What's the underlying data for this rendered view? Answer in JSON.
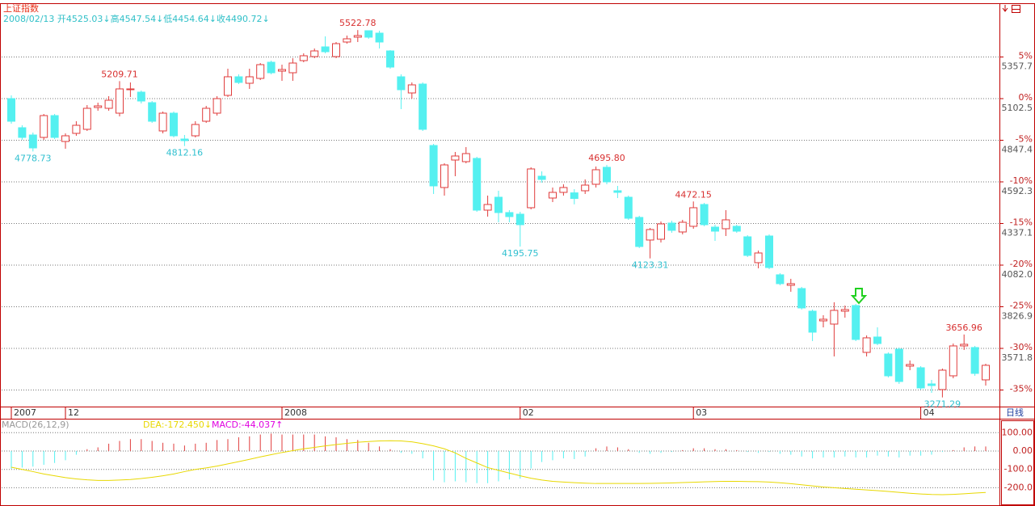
{
  "chart_data": [
    {
      "type": "candlestick",
      "title": "上证指数",
      "subtitle": "2008/02/13 开4525.03↓高4547.54↓低4454.64↓收4490.72↓",
      "period": "日线",
      "categories": [
        "2007",
        null,
        null,
        null,
        null,
        "12",
        null,
        null,
        null,
        null,
        null,
        null,
        null,
        null,
        null,
        null,
        null,
        null,
        null,
        null,
        null,
        null,
        null,
        null,
        null,
        "2008",
        null,
        null,
        null,
        null,
        null,
        null,
        null,
        null,
        null,
        null,
        null,
        null,
        null,
        null,
        null,
        null,
        null,
        null,
        null,
        null,
        null,
        "02",
        null,
        null,
        null,
        null,
        null,
        null,
        null,
        null,
        null,
        null,
        null,
        null,
        null,
        null,
        null,
        "03",
        null,
        null,
        null,
        null,
        null,
        null,
        null,
        null,
        null,
        null,
        null,
        null,
        null,
        null,
        null,
        null,
        null,
        null,
        null,
        null,
        "04",
        null,
        null,
        null,
        null,
        null,
        null
      ],
      "open": [
        5102.6,
        4924.3,
        4879.7,
        4864.8,
        4998.6,
        4840.0,
        4889.6,
        4914.4,
        5048.1,
        5043.2,
        5013.4,
        5157.1,
        5142.2,
        5077.8,
        4904.5,
        5013.4,
        4854.9,
        4874.7,
        4963.9,
        5013.4,
        5122.4,
        5236.4,
        5196.7,
        5226.5,
        5325.5,
        5271.0,
        5261.1,
        5335.5,
        5360.2,
        5419.7,
        5360.2,
        5449.4,
        5479.1,
        5518.7,
        5503.9,
        5394.9,
        5236.4,
        5137.3,
        5191.8,
        4815.3,
        4557.7,
        4726.1,
        4716.2,
        4736.0,
        4419.0,
        4498.2,
        4404.2,
        4394.3,
        4433.9,
        4627.0,
        4493.3,
        4528.0,
        4525.03,
        4537.9,
        4577.5,
        4681.5,
        4537.9,
        4498.2,
        4374.5,
        4235.8,
        4240.7,
        4339.8,
        4285.3,
        4320.0,
        4453.7,
        4315.0,
        4305.1,
        4320.0,
        4255.6,
        4097.1,
        4260.5,
        4022.8,
        3958.4,
        3938.6,
        3799.8,
        3740.4,
        3720.6,
        3799.8,
        3834.5,
        3547.3,
        3641.4,
        3537.3,
        3567.1,
        3463.0,
        3453.1,
        3354.0,
        3319.4,
        3403.6,
        3586.9,
        3577.0,
        3378.8
      ],
      "high": [
        5122.4,
        4939.1,
        4894.5,
        5008.5,
        5008.5,
        4889.6,
        4963.9,
        5063.0,
        5077.8,
        5117.5,
        5209.71,
        5201.7,
        5152.2,
        5087.8,
        5023.3,
        5023.3,
        4879.7,
        4963.9,
        5058.0,
        5117.5,
        5285.9,
        5251.2,
        5285.9,
        5320.6,
        5335.5,
        5310.7,
        5350.3,
        5380.0,
        5409.8,
        5484.1,
        5449.4,
        5489.0,
        5522.78,
        5518.7,
        5518.7,
        5399.9,
        5251.2,
        5201.7,
        5201.7,
        4825.2,
        4706.3,
        4775.6,
        4805.4,
        4745.9,
        4508.2,
        4537.9,
        4419.0,
        4409.1,
        4681.5,
        4656.8,
        4557.7,
        4577.5,
        4547.54,
        4607.2,
        4686.4,
        4695.8,
        4567.6,
        4508.2,
        4384.4,
        4310.1,
        4349.7,
        4354.6,
        4359.6,
        4472.15,
        4463.6,
        4329.9,
        4419.0,
        4329.9,
        4265.5,
        4171.4,
        4270.4,
        4032.7,
        3998.1,
        3948.5,
        3809.8,
        3775.1,
        3854.4,
        3834.5,
        3844.5,
        3651.3,
        3700.8,
        3547.3,
        3577.0,
        3497.7,
        3463.0,
        3378.8,
        3448.1,
        3601.7,
        3656.96,
        3586.9,
        3477.7
      ],
      "low": [
        4949.0,
        4849.9,
        4778.73,
        4849.9,
        4854.9,
        4795.5,
        4874.7,
        4904.5,
        5028.3,
        5028.3,
        4993.6,
        5112.5,
        5072.9,
        4954.0,
        4889.6,
        4864.8,
        4812.16,
        4864.8,
        4954.0,
        4998.6,
        5112.5,
        5191.8,
        5162.1,
        5216.6,
        5251.2,
        5211.6,
        5211.6,
        5325.5,
        5350.3,
        5380.0,
        5350.3,
        5439.5,
        5449.4,
        5469.2,
        5409.8,
        5285.9,
        5038.2,
        5102.6,
        4904.5,
        4518.1,
        4508.2,
        4627.0,
        4706.3,
        4409.1,
        4379.4,
        4344.7,
        4344.7,
        4195.75,
        4424.0,
        4587.4,
        4468.5,
        4508.2,
        4454.64,
        4518.1,
        4557.7,
        4577.5,
        4493.3,
        4359.6,
        4186.3,
        4123.31,
        4220.9,
        4280.3,
        4270.4,
        4305.1,
        4320.0,
        4230.8,
        4260.5,
        4280.3,
        4131.8,
        4062.5,
        4057.5,
        3958.4,
        3918.8,
        3809.8,
        3616.6,
        3700.8,
        3522.5,
        3760.2,
        3616.6,
        3522.5,
        3591.8,
        3393.7,
        3354.0,
        3438.2,
        3319.4,
        3299.5,
        3271.29,
        3388.7,
        3562.1,
        3403.6,
        3344.1
      ],
      "close": [
        4963.9,
        4864.8,
        4800.4,
        4998.6,
        4864.8,
        4874.7,
        4939.1,
        5043.2,
        5058.0,
        5092.7,
        5162.1,
        5162.1,
        5087.8,
        4963.9,
        5013.4,
        4874.7,
        4845.0,
        4944.1,
        5043.2,
        5102.6,
        5236.4,
        5201.7,
        5236.4,
        5310.7,
        5261.1,
        5281.0,
        5320.6,
        5365.2,
        5394.9,
        5390.0,
        5439.5,
        5469.2,
        5489.0,
        5479.1,
        5449.4,
        5295.8,
        5157.1,
        5186.8,
        4914.4,
        4567.6,
        4696.3,
        4750.9,
        4765.7,
        4419.0,
        4453.7,
        4404.2,
        4379.4,
        4329.9,
        4671.6,
        4607.2,
        4528.0,
        4557.7,
        4490.72,
        4572.5,
        4666.7,
        4592.4,
        4528.0,
        4369.5,
        4196.2,
        4300.2,
        4334.8,
        4295.2,
        4344.7,
        4433.9,
        4329.9,
        4290.2,
        4359.6,
        4290.2,
        4141.7,
        4156.5,
        4067.4,
        3968.3,
        3968.3,
        3819.7,
        3671.1,
        3750.3,
        3804.8,
        3809.8,
        3626.5,
        3636.4,
        3601.7,
        3403.6,
        3368.9,
        3472.9,
        3329.3,
        3344.1,
        3438.2,
        3586.9,
        3596.8,
        3418.4,
        3468.0
      ],
      "high_labels": [
        null,
        null,
        null,
        null,
        null,
        null,
        null,
        null,
        null,
        null,
        "5209.71",
        null,
        null,
        null,
        null,
        null,
        null,
        null,
        null,
        null,
        null,
        null,
        null,
        null,
        null,
        null,
        null,
        null,
        null,
        null,
        null,
        null,
        "5522.78",
        null,
        null,
        null,
        null,
        null,
        null,
        null,
        null,
        null,
        null,
        null,
        null,
        null,
        null,
        null,
        null,
        null,
        null,
        null,
        null,
        null,
        null,
        "4695.80",
        null,
        null,
        null,
        null,
        null,
        null,
        null,
        "4472.15",
        null,
        null,
        null,
        null,
        null,
        null,
        null,
        null,
        null,
        null,
        null,
        null,
        null,
        null,
        null,
        null,
        null,
        null,
        null,
        null,
        null,
        null,
        null,
        null,
        "3656.96",
        null,
        null
      ],
      "low_labels": [
        null,
        null,
        "4778.73",
        null,
        null,
        null,
        null,
        null,
        null,
        null,
        null,
        null,
        null,
        null,
        null,
        null,
        "4812.16",
        null,
        null,
        null,
        null,
        null,
        null,
        null,
        null,
        null,
        null,
        null,
        null,
        null,
        null,
        null,
        null,
        null,
        null,
        null,
        null,
        null,
        null,
        null,
        null,
        null,
        null,
        null,
        null,
        null,
        null,
        "4195.75",
        null,
        null,
        null,
        null,
        null,
        null,
        null,
        null,
        null,
        null,
        null,
        "4123.31",
        null,
        null,
        null,
        null,
        null,
        null,
        null,
        null,
        null,
        null,
        null,
        null,
        null,
        null,
        null,
        null,
        null,
        null,
        null,
        null,
        null,
        null,
        null,
        null,
        null,
        null,
        "3271.29",
        null,
        null,
        null,
        null
      ],
      "up_color": "#e03c3c",
      "down_color": "#54f0f0",
      "ylim": [
        3215.1,
        5682.2
      ],
      "yticks": [
        {
          "value": 5357.7,
          "label": "5%"
        },
        {
          "value": 5102.5,
          "label": "0%"
        },
        {
          "value": 4847.4,
          "label": "-5%"
        },
        {
          "value": 4592.3,
          "label": "-10%"
        },
        {
          "value": 4337.1,
          "label": "-15%"
        },
        {
          "value": 4082.0,
          "label": "-20%"
        },
        {
          "value": 3826.9,
          "label": "-25%"
        },
        {
          "value": 3571.8,
          "label": "-30%"
        },
        {
          "value": 3316.6,
          "label": "-35%"
        }
      ],
      "y2lim": [
        3215.1,
        5682.2
      ],
      "y2ticks": [
        5357.7,
        5102.5,
        4847.4,
        4592.3,
        4337.1,
        {
          "value": 4082.0,
          "label": "4082.0"
        },
        3826.9,
        3571.8
      ],
      "grid": true
    },
    {
      "type": "macd",
      "title": "MACD(26,12,9)",
      "dea_label": "DEA:-172.450↓",
      "macd_label": "MACD:-44.037↑",
      "values": [
        -97,
        -90,
        -85,
        -75,
        -65,
        -50,
        -20,
        10,
        20,
        40,
        55,
        65,
        65,
        55,
        45,
        40,
        30,
        40,
        45,
        60,
        65,
        75,
        80,
        90,
        95,
        90,
        90,
        90,
        90,
        80,
        75,
        65,
        60,
        45,
        25,
        10,
        -10,
        -15,
        -40,
        -160,
        -170,
        -165,
        -170,
        -175,
        -175,
        -165,
        -155,
        -150,
        -95,
        -60,
        -50,
        -40,
        -44.037,
        -30,
        15,
        25,
        20,
        10,
        -10,
        -15,
        -10,
        -5,
        5,
        15,
        15,
        10,
        10,
        5,
        -5,
        -10,
        -5,
        -15,
        -20,
        -30,
        -40,
        -35,
        -35,
        -30,
        -35,
        -35,
        -25,
        -30,
        -35,
        -25,
        -25,
        -20,
        -5,
        5,
        20,
        25,
        25
      ],
      "dea": [
        -88,
        -100,
        -112,
        -125,
        -135,
        -145,
        -152,
        -157,
        -160,
        -160,
        -158,
        -155,
        -150,
        -143,
        -135,
        -125,
        -112,
        -100,
        -92,
        -82,
        -70,
        -58,
        -45,
        -32,
        -20,
        -8,
        2,
        12,
        20,
        28,
        35,
        42,
        48,
        52,
        55,
        56,
        55,
        50,
        40,
        28,
        12,
        -10,
        -40,
        -65,
        -90,
        -105,
        -120,
        -135,
        -148,
        -158,
        -165,
        -169,
        -172.45,
        -175,
        -177,
        -177,
        -177,
        -177,
        -177,
        -176,
        -175,
        -174,
        -172,
        -170,
        -168,
        -166,
        -165,
        -165,
        -166,
        -167,
        -169,
        -173,
        -178,
        -184,
        -190,
        -196,
        -200,
        -204,
        -208,
        -212,
        -216,
        -220,
        -225,
        -230,
        -234,
        -237,
        -238,
        -236,
        -233,
        -229,
        -226
      ],
      "up_color": "#e03c3c",
      "down_color": "#54f0f0",
      "dea_color": "#e8d800",
      "macd_label_color": "#e000e0",
      "ylim": [
        -290.7,
        167.4
      ],
      "yticks": [
        {
          "value": 100,
          "label": "100.00"
        },
        {
          "value": 0,
          "label": "0.00"
        },
        {
          "value": -100,
          "label": "-100.0"
        },
        {
          "value": -200,
          "label": "-200.0"
        }
      ],
      "grid": true
    }
  ]
}
